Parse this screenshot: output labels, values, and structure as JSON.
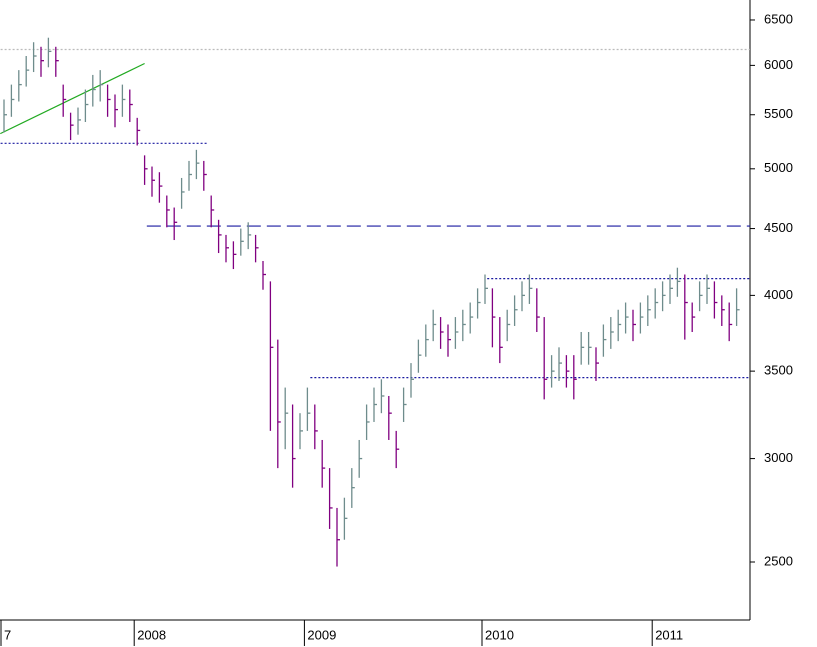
{
  "chart_data": {
    "type": "ohlc",
    "log_scale": true,
    "up_color": "#6e8c8c",
    "down_color": "#800080",
    "categories": [
      "7",
      null,
      null,
      null,
      null,
      null,
      null,
      null,
      null,
      null,
      null,
      null,
      null,
      null,
      null,
      null,
      null,
      null,
      "2008",
      null,
      null,
      null,
      null,
      null,
      null,
      null,
      null,
      null,
      null,
      null,
      null,
      null,
      null,
      null,
      null,
      null,
      null,
      null,
      null,
      null,
      null,
      "2009",
      null,
      null,
      null,
      null,
      null,
      null,
      null,
      null,
      null,
      null,
      null,
      null,
      null,
      null,
      null,
      null,
      null,
      null,
      null,
      null,
      null,
      null,
      null,
      "2010",
      null,
      null,
      null,
      null,
      null,
      null,
      null,
      null,
      null,
      null,
      null,
      null,
      null,
      null,
      null,
      null,
      null,
      null,
      null,
      null,
      null,
      null,
      "2011",
      null,
      null,
      null,
      null,
      null,
      null,
      null,
      null,
      null,
      null,
      null
    ],
    "close": [
      5500,
      5650,
      5800,
      5950,
      6100,
      6050,
      6150,
      6050,
      5650,
      5400,
      5450,
      5600,
      5750,
      5800,
      5650,
      5550,
      5650,
      5600,
      5350,
      5000,
      4900,
      4850,
      4650,
      4550,
      4800,
      4950,
      5050,
      4950,
      4650,
      4450,
      4350,
      4300,
      4400,
      4450,
      4350,
      4150,
      3650,
      3200,
      3250,
      3000,
      3150,
      3250,
      3150,
      2950,
      2750,
      2600,
      2700,
      2850,
      3000,
      3200,
      3300,
      3350,
      3250,
      3050,
      3300,
      3450,
      3600,
      3700,
      3800,
      3750,
      3700,
      3750,
      3800,
      3850,
      3950,
      4050,
      3850,
      3650,
      3800,
      3900,
      4000,
      4050,
      3850,
      3450,
      3500,
      3550,
      3500,
      3450,
      3650,
      3650,
      3550,
      3700,
      3750,
      3800,
      3850,
      3800,
      3850,
      3900,
      3950,
      4000,
      4050,
      4100,
      3950,
      3850,
      4000,
      4050,
      3950,
      3900,
      3800,
      3900
    ],
    "high": [
      5650,
      5800,
      5950,
      6100,
      6250,
      6200,
      6300,
      6200,
      5800,
      5520,
      5570,
      5750,
      5900,
      5950,
      5800,
      5700,
      5800,
      5750,
      5470,
      5120,
      5020,
      4970,
      4770,
      4670,
      4920,
      5070,
      5170,
      5070,
      4770,
      4570,
      4450,
      4400,
      4500,
      4550,
      4450,
      4250,
      4100,
      3700,
      3400,
      3300,
      3250,
      3400,
      3300,
      3100,
      2950,
      2750,
      2800,
      2950,
      3100,
      3300,
      3400,
      3450,
      3350,
      3150,
      3400,
      3550,
      3700,
      3800,
      3900,
      3850,
      3800,
      3850,
      3900,
      3950,
      4050,
      4150,
      4050,
      3850,
      3900,
      4000,
      4100,
      4150,
      4050,
      3850,
      3600,
      3650,
      3600,
      3600,
      3750,
      3750,
      3650,
      3800,
      3850,
      3900,
      3950,
      3900,
      3950,
      4000,
      4050,
      4100,
      4150,
      4200,
      4150,
      3950,
      4100,
      4150,
      4100,
      4000,
      3950,
      4050
    ],
    "low": [
      5330,
      5480,
      5630,
      5780,
      5930,
      5880,
      5980,
      5880,
      5480,
      5260,
      5310,
      5430,
      5580,
      5630,
      5480,
      5380,
      5480,
      5430,
      5210,
      4860,
      4760,
      4710,
      4510,
      4410,
      4660,
      4810,
      4910,
      4810,
      4510,
      4310,
      4240,
      4190,
      4290,
      4340,
      4240,
      4040,
      3150,
      2950,
      3050,
      2850,
      3050,
      3150,
      3050,
      2850,
      2650,
      2480,
      2600,
      2750,
      2900,
      3100,
      3200,
      3250,
      3100,
      2950,
      3200,
      3340,
      3490,
      3590,
      3690,
      3640,
      3590,
      3640,
      3690,
      3740,
      3840,
      3940,
      3650,
      3550,
      3690,
      3790,
      3890,
      3940,
      3750,
      3330,
      3400,
      3440,
      3400,
      3330,
      3540,
      3540,
      3440,
      3590,
      3640,
      3690,
      3740,
      3690,
      3740,
      3790,
      3840,
      3890,
      3940,
      3990,
      3700,
      3750,
      3890,
      3940,
      3840,
      3790,
      3690,
      3790
    ],
    "ylim": [
      2257,
      6733
    ],
    "yticks": [
      2500,
      3000,
      3500,
      4000,
      4500,
      5000,
      5500,
      6000,
      6500
    ],
    "lines": [
      {
        "y": [
          6170,
          6170
        ],
        "x": [
          -1,
          100.8
        ],
        "color": "#bbbbbb",
        "dash": "2 2"
      },
      {
        "y": [
          5230,
          5230
        ],
        "x": [
          -1,
          27.5
        ],
        "color": "#1a1aa0",
        "dash": "2 2"
      },
      {
        "y": [
          4520,
          4520
        ],
        "x": [
          19.3,
          100.8
        ],
        "color": "#1a1aa0",
        "dash": "14 6"
      },
      {
        "y": [
          4120,
          4120
        ],
        "x": [
          65.3,
          100.8
        ],
        "color": "#1a1aa0",
        "dash": "2 2"
      },
      {
        "y": [
          3460,
          3460
        ],
        "x": [
          41.4,
          100.8
        ],
        "color": "#1a1aa0",
        "dash": "2 2"
      },
      {
        "y": [
          5320,
          6020
        ],
        "x": [
          -0.5,
          19
        ],
        "color": "#22aa22",
        "dash": "none"
      }
    ]
  }
}
